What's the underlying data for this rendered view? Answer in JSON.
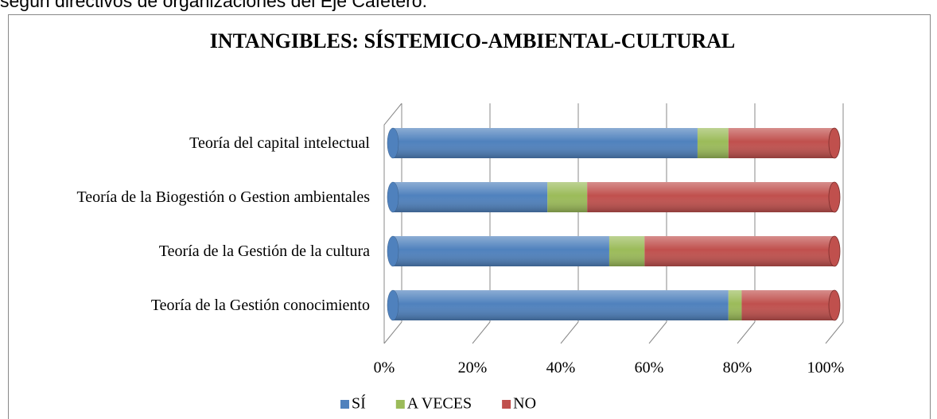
{
  "caption": "según directivos de organizaciones del Eje Cafetero.",
  "chart_data": {
    "type": "bar",
    "orientation": "horizontal",
    "stacked": true,
    "title": "INTANGIBLES: SÍSTEMICO-AMBIENTAL-CULTURAL",
    "categories": [
      "Teoría del capital intelectual",
      "Teoría de la Biogestión  o Gestion ambientales",
      "Teoría de la Gestión de la cultura",
      "Teoría de la Gestión conocimiento"
    ],
    "series": [
      {
        "name": "SÍ",
        "color": "#4f81bd",
        "values": [
          69,
          35,
          49,
          76
        ]
      },
      {
        "name": "A VECES",
        "color": "#9bbb59",
        "values": [
          7,
          9,
          8,
          3
        ]
      },
      {
        "name": "NO",
        "color": "#c0504d",
        "values": [
          24,
          56,
          43,
          21
        ]
      }
    ],
    "xlim": [
      0,
      100
    ],
    "xticks": [
      {
        "value": 0,
        "label": "0%"
      },
      {
        "value": 20,
        "label": "20%"
      },
      {
        "value": 40,
        "label": "40%"
      },
      {
        "value": 60,
        "label": "60%"
      },
      {
        "value": 80,
        "label": "80%"
      },
      {
        "value": 100,
        "label": "100%"
      }
    ],
    "grid": true,
    "legend": "bottom"
  }
}
